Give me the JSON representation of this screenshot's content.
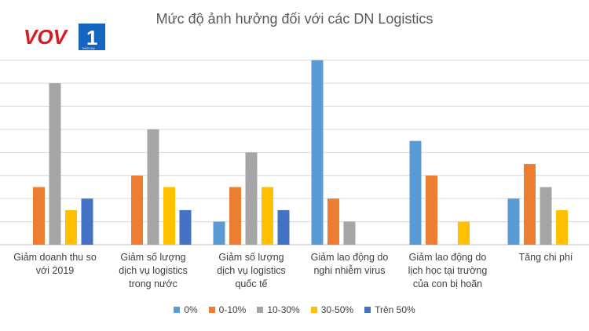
{
  "logo": {
    "text": "VOV",
    "badge": "1",
    "sub": "THỜI SỰ"
  },
  "chart_data": {
    "type": "bar",
    "title": "Mức độ ảnh hưởng đối với các DN Logistics",
    "categories": [
      [
        "Giảm doanh thu so",
        "với 2019"
      ],
      [
        "Giảm số lượng",
        "dịch vụ logistics",
        "trong nước"
      ],
      [
        "Giảm số lượng",
        "dịch vụ logistics",
        "quốc tế"
      ],
      [
        "Giảm lao động do",
        "nghi nhiễm virus"
      ],
      [
        "Giảm lao động do",
        "lịch học tại trường",
        "của con bị hoãn"
      ],
      [
        "Tăng chi phí"
      ]
    ],
    "series": [
      {
        "name": "0%",
        "color": "#5B9BD5",
        "values": [
          0,
          0,
          1,
          8,
          4.5,
          2
        ]
      },
      {
        "name": "0-10%",
        "color": "#ED7D31",
        "values": [
          2.5,
          3,
          2.5,
          2,
          3,
          3.5
        ]
      },
      {
        "name": "10-30%",
        "color": "#A5A5A5",
        "values": [
          7,
          5,
          4,
          1,
          0,
          2.5
        ]
      },
      {
        "name": "30-50%",
        "color": "#FFC000",
        "values": [
          1.5,
          2.5,
          2.5,
          0,
          1,
          1.5
        ]
      },
      {
        "name": "Trên 50%",
        "color": "#4472C4",
        "values": [
          2,
          1.5,
          1.5,
          0,
          0,
          0
        ]
      }
    ],
    "ylim": [
      0,
      8.5
    ],
    "grid": true,
    "legend": "bottom"
  }
}
